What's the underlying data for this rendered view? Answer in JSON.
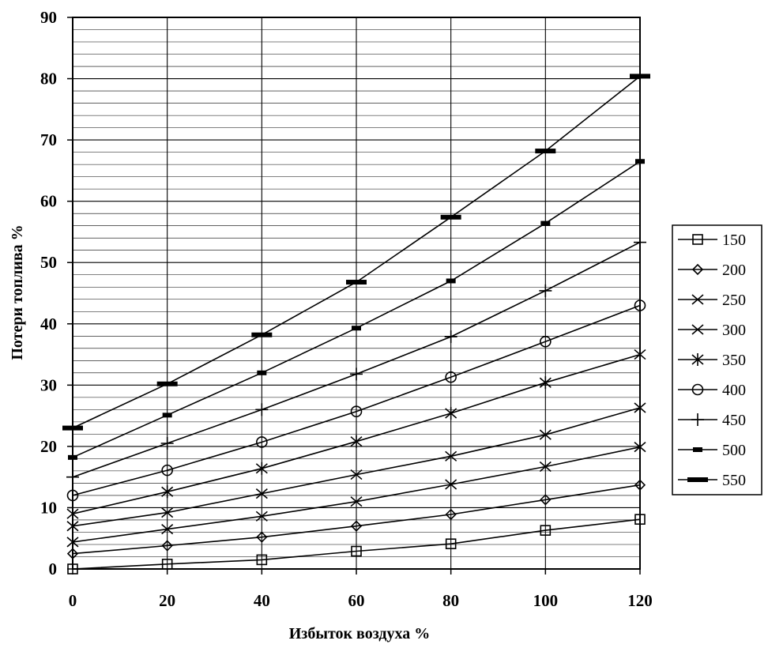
{
  "chart_data": {
    "type": "line",
    "title": "",
    "xlabel": "Избыток воздуха  %",
    "ylabel": "Потери топлива %",
    "x": [
      0,
      20,
      40,
      60,
      80,
      100,
      120
    ],
    "x_tick_labels": [
      "0",
      "20",
      "40",
      "60",
      "80",
      "100",
      "120"
    ],
    "y_tick_labels": [
      "0",
      "10",
      "20",
      "30",
      "40",
      "50",
      "60",
      "70",
      "80",
      "90"
    ],
    "xlim": [
      0,
      120
    ],
    "ylim": [
      0,
      90
    ],
    "grid": true,
    "legend_position": "right",
    "series": [
      {
        "name": "150",
        "marker": "square",
        "values": [
          0,
          0.8,
          1.5,
          2.9,
          4.1,
          6.3,
          8.1
        ]
      },
      {
        "name": "200",
        "marker": "diamond",
        "values": [
          2.5,
          3.8,
          5.2,
          7.0,
          8.9,
          11.3,
          13.7
        ]
      },
      {
        "name": "250",
        "marker": "x",
        "values": [
          4.4,
          6.5,
          8.6,
          11.0,
          13.8,
          16.7,
          19.9
        ]
      },
      {
        "name": "300",
        "marker": "x",
        "values": [
          7.0,
          9.2,
          12.3,
          15.4,
          18.4,
          21.9,
          26.3
        ]
      },
      {
        "name": "350",
        "marker": "star",
        "values": [
          9.0,
          12.6,
          16.4,
          20.8,
          25.4,
          30.4,
          35.0
        ]
      },
      {
        "name": "400",
        "marker": "circle",
        "values": [
          12.0,
          16.1,
          20.7,
          25.7,
          31.3,
          37.1,
          43.0
        ]
      },
      {
        "name": "450",
        "marker": "plus",
        "values": [
          15.0,
          20.5,
          26.0,
          31.8,
          37.9,
          45.4,
          53.3
        ]
      },
      {
        "name": "500",
        "marker": "dash",
        "values": [
          18.2,
          25.1,
          32.0,
          39.3,
          47.0,
          56.4,
          66.5
        ]
      },
      {
        "name": "550",
        "marker": "bar",
        "values": [
          23.0,
          30.2,
          38.2,
          46.8,
          57.4,
          68.2,
          80.4
        ]
      }
    ]
  }
}
